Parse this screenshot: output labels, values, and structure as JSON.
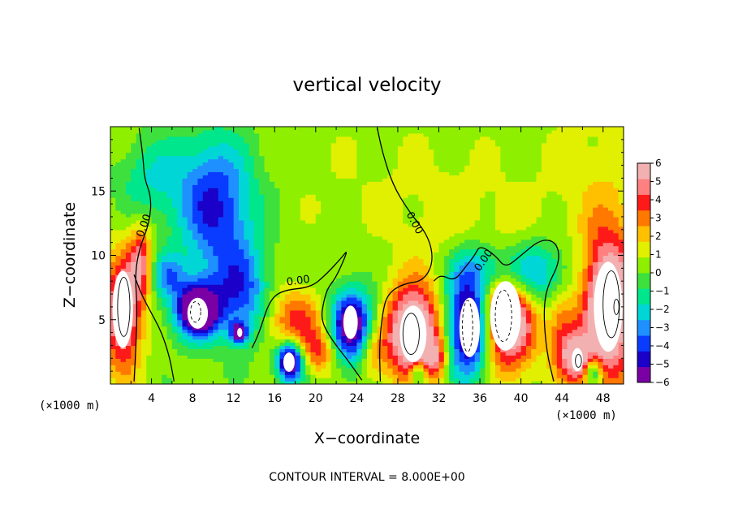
{
  "chart_data": {
    "type": "heatmap",
    "title": "vertical velocity",
    "xlabel": "X−coordinate",
    "ylabel": "Z−coordinate",
    "x_unit_left": "(×1000 m)",
    "x_unit_right": "(×1000 m)",
    "xlim": [
      0,
      50
    ],
    "ylim": [
      0,
      20
    ],
    "xticks": [
      4,
      8,
      12,
      16,
      20,
      24,
      28,
      32,
      36,
      40,
      44,
      48
    ],
    "yticks": [
      5,
      10,
      15
    ],
    "colorbar": {
      "min": -6,
      "max": 6,
      "ticks": [
        6,
        5,
        4,
        3,
        2,
        1,
        0,
        -1,
        -2,
        -3,
        -4,
        -5,
        -6
      ],
      "tick_labels": [
        "6",
        "5",
        "4",
        "3",
        "2",
        "1",
        "0",
        "−1",
        "−2",
        "−3",
        "−4",
        "−5",
        "−6"
      ],
      "colors": [
        "#7a00a6",
        "#1a00c8",
        "#0a3cff",
        "#1e90ff",
        "#00d6d6",
        "#00e68c",
        "#3ee03e",
        "#8ef000",
        "#e0f000",
        "#ffc000",
        "#ff7800",
        "#ff1a1a",
        "#ff8080",
        "#f3b0b0"
      ]
    },
    "contour_label": "0.00",
    "contour_interval_text": "CONTOUR INTERVAL = 8.000E+00",
    "features": [
      {
        "x": 1.2,
        "z": 5.5,
        "sx": 1.3,
        "sz": 3.2,
        "w": 6
      },
      {
        "x": 3.0,
        "z": 9.5,
        "sx": 0.8,
        "sz": 2.0,
        "w": 4
      },
      {
        "x": 8.5,
        "z": 5.8,
        "sx": 1.6,
        "sz": 1.5,
        "w": -8
      },
      {
        "x": 10.5,
        "z": 12.5,
        "sx": 2.5,
        "sz": 4.0,
        "w": -3.5
      },
      {
        "x": 9.0,
        "z": 15.5,
        "sx": 3.5,
        "sz": 3.0,
        "w": -2
      },
      {
        "x": 13.0,
        "z": 7.0,
        "sx": 1.8,
        "sz": 2.5,
        "w": -3.5
      },
      {
        "x": 12.5,
        "z": 4.0,
        "sx": 0.6,
        "sz": 0.6,
        "w": -6
      },
      {
        "x": 5.5,
        "z": 8.5,
        "sx": 1.2,
        "sz": 1.2,
        "w": -3
      },
      {
        "x": 3.5,
        "z": 16.0,
        "sx": 2.0,
        "sz": 2.0,
        "w": -1.5
      },
      {
        "x": 18.0,
        "z": 4.8,
        "sx": 2.0,
        "sz": 1.8,
        "w": 3.5
      },
      {
        "x": 17.5,
        "z": 1.8,
        "sx": 0.9,
        "sz": 1.1,
        "w": -8
      },
      {
        "x": 20.5,
        "z": 2.5,
        "sx": 1.2,
        "sz": 1.2,
        "w": 3
      },
      {
        "x": 23.5,
        "z": 4.5,
        "sx": 1.5,
        "sz": 2.0,
        "w": -7
      },
      {
        "x": 25.5,
        "z": 2.5,
        "sx": 1.0,
        "sz": 1.5,
        "w": 2.5
      },
      {
        "x": 29.5,
        "z": 4.0,
        "sx": 1.8,
        "sz": 2.5,
        "w": 8
      },
      {
        "x": 30.0,
        "z": 0.8,
        "sx": 0.6,
        "sz": 0.8,
        "w": -4
      },
      {
        "x": 31.8,
        "z": 2.0,
        "sx": 0.8,
        "sz": 1.2,
        "w": 3
      },
      {
        "x": 35.0,
        "z": 4.5,
        "sx": 1.6,
        "sz": 2.8,
        "w": -8
      },
      {
        "x": 38.5,
        "z": 5.5,
        "sx": 2.0,
        "sz": 3.0,
        "w": 8
      },
      {
        "x": 40.0,
        "z": 8.5,
        "sx": 3.0,
        "sz": 1.8,
        "w": -5
      },
      {
        "x": 36.0,
        "z": 9.0,
        "sx": 2.0,
        "sz": 1.5,
        "w": -2
      },
      {
        "x": 34.0,
        "z": 12.0,
        "sx": 5.0,
        "sz": 4.0,
        "w": 0.8
      },
      {
        "x": 48.5,
        "z": 6.0,
        "sx": 1.8,
        "sz": 4.0,
        "w": 8
      },
      {
        "x": 45.5,
        "z": 2.0,
        "sx": 1.0,
        "sz": 1.3,
        "w": 5
      },
      {
        "x": 47.0,
        "z": 1.0,
        "sx": 0.6,
        "sz": 0.8,
        "w": -4
      },
      {
        "x": 44.0,
        "z": 4.0,
        "sx": 1.0,
        "sz": 2.5,
        "w": 3
      },
      {
        "x": 47.5,
        "z": 16.0,
        "sx": 4.0,
        "sz": 4.0,
        "w": 1.0
      },
      {
        "x": 25.0,
        "z": 16.0,
        "sx": 8.0,
        "sz": 4.0,
        "w": 0.4
      }
    ],
    "contour_segments": [
      [
        [
          2.3,
          0.2
        ],
        [
          2.5,
          3
        ],
        [
          2.6,
          6
        ],
        [
          2.4,
          8.5
        ],
        [
          2.8,
          10.5
        ],
        [
          3.8,
          12.5
        ],
        [
          4.0,
          14.5
        ],
        [
          3.3,
          16
        ],
        [
          3.2,
          17.5
        ],
        [
          2.8,
          19.9
        ]
      ],
      [
        [
          6.2,
          0.2
        ],
        [
          5.8,
          2
        ],
        [
          5.0,
          4
        ],
        [
          4.0,
          5.5
        ],
        [
          3.0,
          7
        ],
        [
          2.3,
          8.5
        ]
      ],
      [
        [
          13.8,
          2.8
        ],
        [
          14.5,
          4
        ],
        [
          15.5,
          6.5
        ],
        [
          16.8,
          7.3
        ],
        [
          19.5,
          7.5
        ],
        [
          21.0,
          8.5
        ],
        [
          22.5,
          9.8
        ],
        [
          23.2,
          10.5
        ],
        [
          22.0,
          8.3
        ],
        [
          21.2,
          7.5
        ],
        [
          20.8,
          6.5
        ],
        [
          20.5,
          5
        ],
        [
          21.5,
          3.5
        ],
        [
          23.0,
          2.0
        ],
        [
          24.5,
          0.3
        ]
      ],
      [
        [
          26.3,
          0.2
        ],
        [
          26.2,
          3
        ],
        [
          26.5,
          5.5
        ],
        [
          27.0,
          7.0
        ],
        [
          28.5,
          7.8
        ],
        [
          30.5,
          8.0
        ],
        [
          31.5,
          9.5
        ],
        [
          31.0,
          11.5
        ],
        [
          29.0,
          13.5
        ],
        [
          27.5,
          15.5
        ],
        [
          26.5,
          18
        ],
        [
          26.0,
          19.9
        ]
      ],
      [
        [
          31.5,
          8.0
        ],
        [
          32.2,
          8.5
        ],
        [
          33.5,
          8.0
        ],
        [
          34.5,
          9.0
        ],
        [
          35.5,
          10.0
        ],
        [
          36.0,
          10.8
        ],
        [
          37.5,
          10.0
        ],
        [
          38.5,
          9.0
        ],
        [
          40.0,
          10.0
        ],
        [
          42.0,
          11.3
        ],
        [
          43.5,
          11.0
        ],
        [
          43.8,
          9.5
        ],
        [
          42.5,
          7.5
        ],
        [
          42.2,
          5.5
        ],
        [
          42.5,
          2.5
        ],
        [
          43.2,
          0.2
        ]
      ]
    ],
    "white_blobs": [
      {
        "x": 1.2,
        "z": 5.8,
        "rx": 1.0,
        "rz": 3.0
      },
      {
        "x": 8.5,
        "z": 5.5,
        "rx": 1.0,
        "rz": 1.2
      },
      {
        "x": 12.6,
        "z": 4.0,
        "rx": 0.25,
        "rz": 0.35
      },
      {
        "x": 17.4,
        "z": 1.7,
        "rx": 0.55,
        "rz": 0.75
      },
      {
        "x": 23.4,
        "z": 4.8,
        "rx": 0.7,
        "rz": 1.3
      },
      {
        "x": 29.5,
        "z": 3.9,
        "rx": 1.3,
        "rz": 2.2
      },
      {
        "x": 35.0,
        "z": 4.4,
        "rx": 1.0,
        "rz": 2.3
      },
      {
        "x": 38.5,
        "z": 5.3,
        "rx": 1.5,
        "rz": 2.7
      },
      {
        "x": 48.5,
        "z": 6.0,
        "rx": 1.4,
        "rz": 3.5
      },
      {
        "x": 45.5,
        "z": 1.9,
        "rx": 0.55,
        "rz": 0.9
      }
    ],
    "thin_contours": [
      {
        "x": 1.3,
        "z": 6.0,
        "rx": 0.6,
        "rz": 2.3,
        "dashed": false
      },
      {
        "x": 8.3,
        "z": 5.6,
        "rx": 0.5,
        "rz": 0.8,
        "dashed": true
      },
      {
        "x": 29.3,
        "z": 3.9,
        "rx": 0.8,
        "rz": 1.6,
        "dashed": false
      },
      {
        "x": 34.8,
        "z": 4.5,
        "rx": 0.5,
        "rz": 2.0,
        "dashed": true
      },
      {
        "x": 38.3,
        "z": 5.3,
        "rx": 0.8,
        "rz": 2.0,
        "dashed": true
      },
      {
        "x": 48.8,
        "z": 6.2,
        "rx": 0.8,
        "rz": 2.6,
        "dashed": false
      },
      {
        "x": 49.3,
        "z": 6.0,
        "rx": 0.25,
        "rz": 0.6,
        "dashed": false
      },
      {
        "x": 45.6,
        "z": 1.8,
        "rx": 0.3,
        "rz": 0.5,
        "dashed": false
      }
    ],
    "contour_labels_at": [
      {
        "x": 3.3,
        "z": 12.3,
        "angle": -70
      },
      {
        "x": 18.3,
        "z": 8.0,
        "angle": -8
      },
      {
        "x": 29.6,
        "z": 12.5,
        "angle": 62
      },
      {
        "x": 36.4,
        "z": 9.6,
        "angle": -55
      }
    ]
  }
}
